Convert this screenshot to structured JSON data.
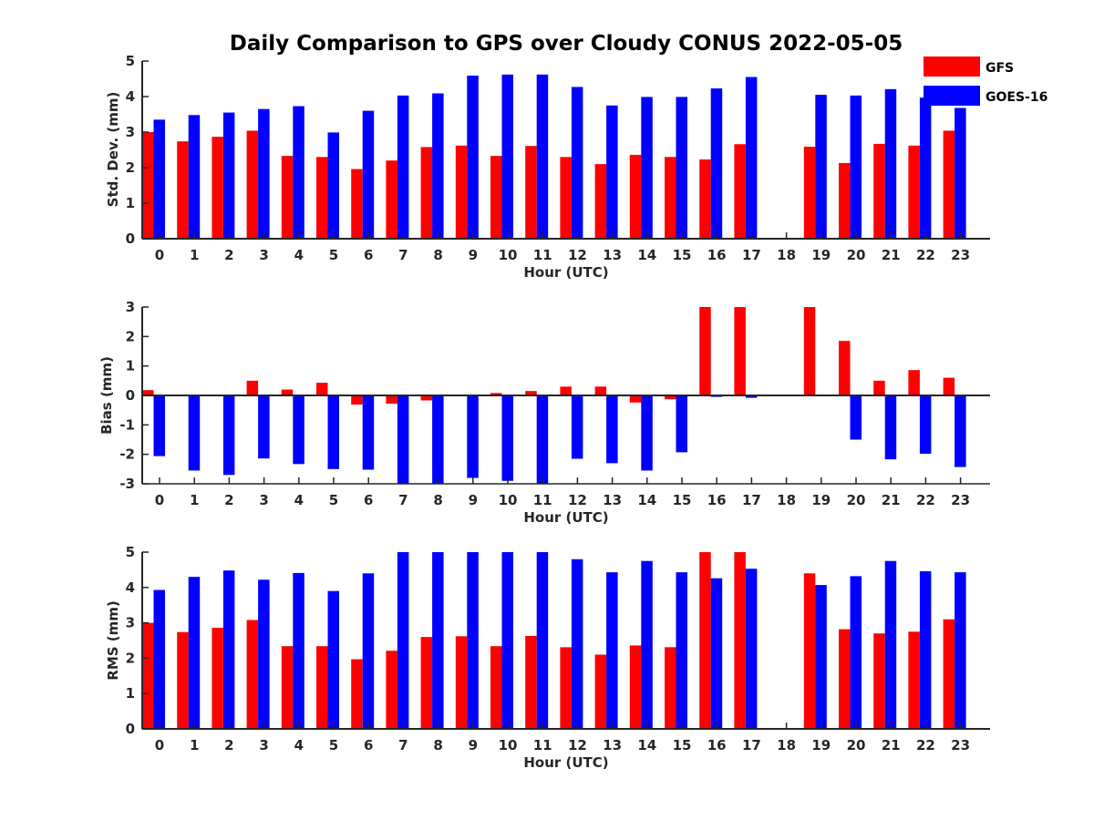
{
  "title": "Daily Comparison to GPS over Cloudy CONUS 2022-05-05",
  "legend": {
    "placement": "top-right",
    "items": [
      {
        "label": "GFS",
        "color": "#ff0000"
      },
      {
        "label": "GOES-16",
        "color": "#0000ff"
      }
    ]
  },
  "chart_data": [
    {
      "type": "bar",
      "xlabel": "Hour (UTC)",
      "ylabel": "Std. Dev. (mm)",
      "ylim": [
        0,
        5
      ],
      "yticks": [
        0,
        1,
        2,
        3,
        4,
        5
      ],
      "categories": [
        "0",
        "1",
        "2",
        "3",
        "4",
        "5",
        "6",
        "7",
        "8",
        "9",
        "10",
        "11",
        "12",
        "13",
        "14",
        "15",
        "16",
        "17",
        "18",
        "19",
        "20",
        "21",
        "22",
        "23"
      ],
      "series": [
        {
          "name": "GFS",
          "color": "#ff0000",
          "values": [
            3.0,
            2.74,
            2.87,
            3.04,
            2.33,
            2.3,
            1.96,
            2.2,
            2.58,
            2.62,
            2.33,
            2.61,
            2.3,
            2.1,
            2.36,
            2.3,
            2.23,
            2.66,
            null,
            2.59,
            2.13,
            2.67,
            2.62,
            3.04
          ]
        },
        {
          "name": "GOES-16",
          "color": "#0000ff",
          "values": [
            3.35,
            3.48,
            3.55,
            3.65,
            3.73,
            2.99,
            3.6,
            4.03,
            4.09,
            4.59,
            4.62,
            4.62,
            4.27,
            3.75,
            3.99,
            3.99,
            4.23,
            4.55,
            null,
            4.05,
            4.03,
            4.21,
            3.97,
            3.68
          ]
        }
      ]
    },
    {
      "type": "bar",
      "xlabel": "Hour (UTC)",
      "ylabel": "Bias (mm)",
      "ylim": [
        -3,
        3
      ],
      "yticks": [
        -3,
        -2,
        -1,
        0,
        1,
        2,
        3
      ],
      "categories": [
        "0",
        "1",
        "2",
        "3",
        "4",
        "5",
        "6",
        "7",
        "8",
        "9",
        "10",
        "11",
        "12",
        "13",
        "14",
        "15",
        "16",
        "17",
        "18",
        "19",
        "20",
        "21",
        "22",
        "23"
      ],
      "series": [
        {
          "name": "GFS",
          "color": "#ff0000",
          "values": [
            0.18,
            -0.03,
            -0.03,
            0.5,
            0.2,
            0.43,
            -0.31,
            -0.28,
            -0.17,
            -0.03,
            0.08,
            0.15,
            0.3,
            0.3,
            -0.24,
            -0.13,
            3.0,
            3.0,
            null,
            3.0,
            1.85,
            0.5,
            0.86,
            0.6
          ]
        },
        {
          "name": "GOES-16",
          "color": "#0000ff",
          "values": [
            -2.06,
            -2.55,
            -2.7,
            -2.14,
            -2.33,
            -2.5,
            -2.52,
            -3.0,
            -3.0,
            -2.8,
            -2.9,
            -3.0,
            -2.15,
            -2.3,
            -2.55,
            -1.93,
            -0.05,
            -0.08,
            null,
            0.0,
            -1.5,
            -2.17,
            -1.98,
            -2.43
          ]
        }
      ]
    },
    {
      "type": "bar",
      "xlabel": "Hour (UTC)",
      "ylabel": "RMS (mm)",
      "ylim": [
        0,
        5
      ],
      "yticks": [
        0,
        1,
        2,
        3,
        4,
        5
      ],
      "categories": [
        "0",
        "1",
        "2",
        "3",
        "4",
        "5",
        "6",
        "7",
        "8",
        "9",
        "10",
        "11",
        "12",
        "13",
        "14",
        "15",
        "16",
        "17",
        "18",
        "19",
        "20",
        "21",
        "22",
        "23"
      ],
      "series": [
        {
          "name": "GFS",
          "color": "#ff0000",
          "values": [
            3.0,
            2.74,
            2.86,
            3.08,
            2.34,
            2.34,
            1.97,
            2.21,
            2.6,
            2.62,
            2.34,
            2.63,
            2.31,
            2.1,
            2.36,
            2.31,
            5.0,
            5.0,
            null,
            4.4,
            2.82,
            2.7,
            2.75,
            3.1
          ]
        },
        {
          "name": "GOES-16",
          "color": "#0000ff",
          "values": [
            3.93,
            4.3,
            4.48,
            4.22,
            4.41,
            3.9,
            4.4,
            5.0,
            5.0,
            5.0,
            5.0,
            5.0,
            4.8,
            4.43,
            4.75,
            4.43,
            4.26,
            4.53,
            null,
            4.07,
            4.32,
            4.75,
            4.46,
            4.43
          ]
        }
      ]
    }
  ]
}
